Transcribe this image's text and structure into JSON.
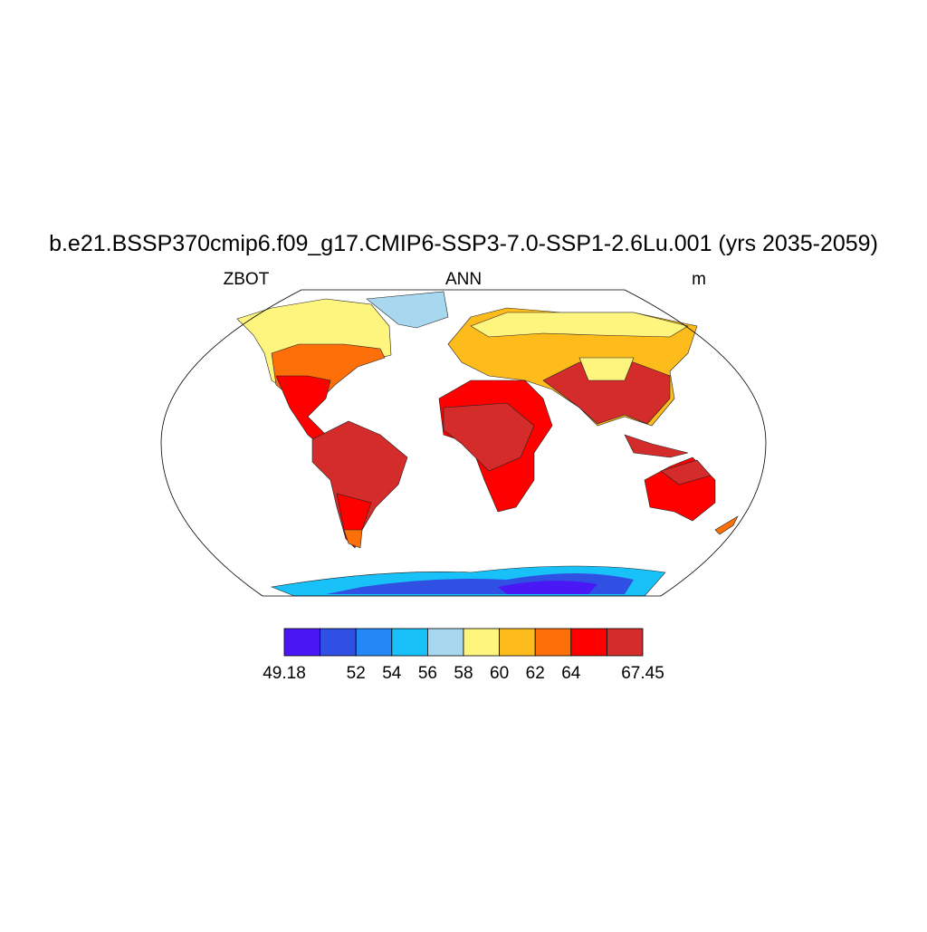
{
  "header": {
    "title": "b.e21.BSSP370cmip6.f09_g17.CMIP6-SSP3-7.0-SSP1-2.6Lu.001 (yrs 2035-2059)",
    "left": "ZBOT",
    "center": "ANN",
    "right": "m"
  },
  "colorbar": {
    "colors": [
      "#4a18f5",
      "#2f50e2",
      "#2488f6",
      "#18c2f8",
      "#a8d8f0",
      "#fef57e",
      "#fdbc1c",
      "#fd6f08",
      "#fe0000",
      "#d42b2b"
    ],
    "levels": [
      49.18,
      null,
      52,
      54,
      56,
      58,
      60,
      62,
      64,
      null,
      67.45
    ]
  }
}
